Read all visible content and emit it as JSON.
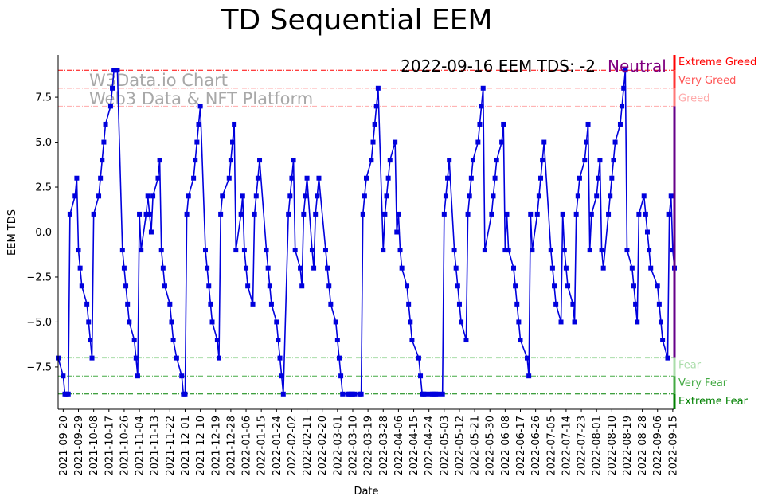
{
  "chart_data": {
    "type": "line",
    "title": "TD Sequential EEM",
    "annotation": "2022-09-16 EEM TDS: -2",
    "status": "Neutral",
    "watermark": [
      "W3Data.io Chart",
      "Web3 Data & NFT Platform"
    ],
    "xlabel": "Date",
    "ylabel": "EEM TDS",
    "ylim": [
      -9.85,
      9.85
    ],
    "yticks": [
      -7.5,
      -5.0,
      -2.5,
      0.0,
      2.5,
      5.0,
      7.5
    ],
    "ytick_labels": [
      "−7.5",
      "−5.0",
      "−2.5",
      "0.0",
      "2.5",
      "5.0",
      "7.5"
    ],
    "xticks": [
      "2021-09-20",
      "2021-09-29",
      "2021-10-08",
      "2021-10-17",
      "2021-10-26",
      "2021-11-04",
      "2021-11-13",
      "2021-11-22",
      "2021-12-01",
      "2021-12-10",
      "2021-12-19",
      "2021-12-28",
      "2022-01-06",
      "2022-01-15",
      "2022-01-24",
      "2022-02-02",
      "2022-02-11",
      "2022-02-20",
      "2022-03-01",
      "2022-03-10",
      "2022-03-19",
      "2022-03-28",
      "2022-04-06",
      "2022-04-15",
      "2022-04-24",
      "2022-05-03",
      "2022-05-12",
      "2022-05-21",
      "2022-05-30",
      "2022-06-08",
      "2022-06-17",
      "2022-06-26",
      "2022-07-05",
      "2022-07-14",
      "2022-07-23",
      "2022-08-01",
      "2022-08-10",
      "2022-08-19",
      "2022-08-28",
      "2022-09-06",
      "2022-09-15"
    ],
    "x_start": "2021-09-17",
    "x_end": "2022-09-16",
    "thresholds": [
      {
        "label": "Extreme Greed",
        "value": 9,
        "color": "#ff0000"
      },
      {
        "label": "Very Greed",
        "value": 8,
        "color": "#ff5555"
      },
      {
        "label": "Greed",
        "value": 7,
        "color": "#ffaaaa"
      },
      {
        "label": "Fear",
        "value": -7,
        "color": "#aaddaa"
      },
      {
        "label": "Very Fear",
        "value": -8,
        "color": "#44aa44"
      },
      {
        "label": "Extreme Fear",
        "value": -9,
        "color": "#008000"
      }
    ],
    "series": [
      {
        "name": "EEM TDS",
        "color": "#0000dd",
        "points": [
          [
            "2021-09-17",
            -7
          ],
          [
            "2021-09-20",
            -8
          ],
          [
            "2021-09-21",
            -9
          ],
          [
            "2021-09-22",
            -9
          ],
          [
            "2021-09-23",
            -9
          ],
          [
            "2021-09-24",
            1
          ],
          [
            "2021-09-27",
            2
          ],
          [
            "2021-09-28",
            3
          ],
          [
            "2021-09-29",
            -1
          ],
          [
            "2021-09-30",
            -2
          ],
          [
            "2021-10-01",
            -3
          ],
          [
            "2021-10-04",
            -4
          ],
          [
            "2021-10-05",
            -5
          ],
          [
            "2021-10-06",
            -6
          ],
          [
            "2021-10-07",
            -7
          ],
          [
            "2021-10-08",
            1
          ],
          [
            "2021-10-11",
            2
          ],
          [
            "2021-10-12",
            3
          ],
          [
            "2021-10-13",
            4
          ],
          [
            "2021-10-14",
            5
          ],
          [
            "2021-10-15",
            6
          ],
          [
            "2021-10-18",
            7
          ],
          [
            "2021-10-19",
            8
          ],
          [
            "2021-10-20",
            9
          ],
          [
            "2021-10-21",
            9
          ],
          [
            "2021-10-22",
            9
          ],
          [
            "2021-10-25",
            -1
          ],
          [
            "2021-10-26",
            -2
          ],
          [
            "2021-10-27",
            -3
          ],
          [
            "2021-10-28",
            -4
          ],
          [
            "2021-10-29",
            -5
          ],
          [
            "2021-11-01",
            -6
          ],
          [
            "2021-11-02",
            -7
          ],
          [
            "2021-11-03",
            -8
          ],
          [
            "2021-11-04",
            1
          ],
          [
            "2021-11-05",
            -1
          ],
          [
            "2021-11-08",
            1
          ],
          [
            "2021-11-09",
            2
          ],
          [
            "2021-11-10",
            1
          ],
          [
            "2021-11-11",
            0
          ],
          [
            "2021-11-12",
            2
          ],
          [
            "2021-11-15",
            3
          ],
          [
            "2021-11-16",
            4
          ],
          [
            "2021-11-17",
            -1
          ],
          [
            "2021-11-18",
            -2
          ],
          [
            "2021-11-19",
            -3
          ],
          [
            "2021-11-22",
            -4
          ],
          [
            "2021-11-23",
            -5
          ],
          [
            "2021-11-24",
            -6
          ],
          [
            "2021-11-26",
            -7
          ],
          [
            "2021-11-29",
            -8
          ],
          [
            "2021-11-30",
            -9
          ],
          [
            "2021-12-01",
            -9
          ],
          [
            "2021-12-02",
            1
          ],
          [
            "2021-12-03",
            2
          ],
          [
            "2021-12-06",
            3
          ],
          [
            "2021-12-07",
            4
          ],
          [
            "2021-12-08",
            5
          ],
          [
            "2021-12-09",
            6
          ],
          [
            "2021-12-10",
            7
          ],
          [
            "2021-12-13",
            -1
          ],
          [
            "2021-12-14",
            -2
          ],
          [
            "2021-12-15",
            -3
          ],
          [
            "2021-12-16",
            -4
          ],
          [
            "2021-12-17",
            -5
          ],
          [
            "2021-12-20",
            -6
          ],
          [
            "2021-12-21",
            -7
          ],
          [
            "2021-12-22",
            1
          ],
          [
            "2021-12-23",
            2
          ],
          [
            "2021-12-27",
            3
          ],
          [
            "2021-12-28",
            4
          ],
          [
            "2021-12-29",
            5
          ],
          [
            "2021-12-30",
            6
          ],
          [
            "2021-12-31",
            -1
          ],
          [
            "2022-01-03",
            1
          ],
          [
            "2022-01-04",
            2
          ],
          [
            "2022-01-05",
            -1
          ],
          [
            "2022-01-06",
            -2
          ],
          [
            "2022-01-07",
            -3
          ],
          [
            "2022-01-10",
            -4
          ],
          [
            "2022-01-11",
            1
          ],
          [
            "2022-01-12",
            2
          ],
          [
            "2022-01-13",
            3
          ],
          [
            "2022-01-14",
            4
          ],
          [
            "2022-01-18",
            -1
          ],
          [
            "2022-01-19",
            -2
          ],
          [
            "2022-01-20",
            -3
          ],
          [
            "2022-01-21",
            -4
          ],
          [
            "2022-01-24",
            -5
          ],
          [
            "2022-01-25",
            -6
          ],
          [
            "2022-01-26",
            -7
          ],
          [
            "2022-01-27",
            -8
          ],
          [
            "2022-01-28",
            -9
          ],
          [
            "2022-01-31",
            1
          ],
          [
            "2022-02-01",
            2
          ],
          [
            "2022-02-02",
            3
          ],
          [
            "2022-02-03",
            4
          ],
          [
            "2022-02-04",
            -1
          ],
          [
            "2022-02-07",
            -2
          ],
          [
            "2022-02-08",
            -3
          ],
          [
            "2022-02-09",
            1
          ],
          [
            "2022-02-10",
            2
          ],
          [
            "2022-02-11",
            3
          ],
          [
            "2022-02-14",
            -1
          ],
          [
            "2022-02-15",
            -2
          ],
          [
            "2022-02-16",
            1
          ],
          [
            "2022-02-17",
            2
          ],
          [
            "2022-02-18",
            3
          ],
          [
            "2022-02-22",
            -1
          ],
          [
            "2022-02-23",
            -2
          ],
          [
            "2022-02-24",
            -3
          ],
          [
            "2022-02-25",
            -4
          ],
          [
            "2022-02-28",
            -5
          ],
          [
            "2022-03-01",
            -6
          ],
          [
            "2022-03-02",
            -7
          ],
          [
            "2022-03-03",
            -8
          ],
          [
            "2022-03-04",
            -9
          ],
          [
            "2022-03-07",
            -9
          ],
          [
            "2022-03-08",
            -9
          ],
          [
            "2022-03-09",
            -9
          ],
          [
            "2022-03-10",
            -9
          ],
          [
            "2022-03-11",
            -9
          ],
          [
            "2022-03-14",
            -9
          ],
          [
            "2022-03-15",
            -9
          ],
          [
            "2022-03-16",
            1
          ],
          [
            "2022-03-17",
            2
          ],
          [
            "2022-03-18",
            3
          ],
          [
            "2022-03-21",
            4
          ],
          [
            "2022-03-22",
            5
          ],
          [
            "2022-03-23",
            6
          ],
          [
            "2022-03-24",
            7
          ],
          [
            "2022-03-25",
            8
          ],
          [
            "2022-03-28",
            -1
          ],
          [
            "2022-03-29",
            1
          ],
          [
            "2022-03-30",
            2
          ],
          [
            "2022-03-31",
            3
          ],
          [
            "2022-04-01",
            4
          ],
          [
            "2022-04-04",
            5
          ],
          [
            "2022-04-05",
            0
          ],
          [
            "2022-04-06",
            1
          ],
          [
            "2022-04-07",
            -1
          ],
          [
            "2022-04-08",
            -2
          ],
          [
            "2022-04-11",
            -3
          ],
          [
            "2022-04-12",
            -4
          ],
          [
            "2022-04-13",
            -5
          ],
          [
            "2022-04-14",
            -6
          ],
          [
            "2022-04-18",
            -7
          ],
          [
            "2022-04-19",
            -8
          ],
          [
            "2022-04-20",
            -9
          ],
          [
            "2022-04-21",
            -9
          ],
          [
            "2022-04-22",
            -9
          ],
          [
            "2022-04-25",
            -9
          ],
          [
            "2022-04-26",
            -9
          ],
          [
            "2022-04-27",
            -9
          ],
          [
            "2022-04-28",
            -9
          ],
          [
            "2022-04-29",
            -9
          ],
          [
            "2022-05-02",
            -9
          ],
          [
            "2022-05-03",
            1
          ],
          [
            "2022-05-04",
            2
          ],
          [
            "2022-05-05",
            3
          ],
          [
            "2022-05-06",
            4
          ],
          [
            "2022-05-09",
            -1
          ],
          [
            "2022-05-10",
            -2
          ],
          [
            "2022-05-11",
            -3
          ],
          [
            "2022-05-12",
            -4
          ],
          [
            "2022-05-13",
            -5
          ],
          [
            "2022-05-16",
            -6
          ],
          [
            "2022-05-17",
            1
          ],
          [
            "2022-05-18",
            2
          ],
          [
            "2022-05-19",
            3
          ],
          [
            "2022-05-20",
            4
          ],
          [
            "2022-05-23",
            5
          ],
          [
            "2022-05-24",
            6
          ],
          [
            "2022-05-25",
            7
          ],
          [
            "2022-05-26",
            8
          ],
          [
            "2022-05-27",
            -1
          ],
          [
            "2022-05-31",
            1
          ],
          [
            "2022-06-01",
            2
          ],
          [
            "2022-06-02",
            3
          ],
          [
            "2022-06-03",
            4
          ],
          [
            "2022-06-06",
            5
          ],
          [
            "2022-06-07",
            6
          ],
          [
            "2022-06-08",
            -1
          ],
          [
            "2022-06-09",
            1
          ],
          [
            "2022-06-10",
            -1
          ],
          [
            "2022-06-13",
            -2
          ],
          [
            "2022-06-14",
            -3
          ],
          [
            "2022-06-15",
            -4
          ],
          [
            "2022-06-16",
            -5
          ],
          [
            "2022-06-17",
            -6
          ],
          [
            "2022-06-21",
            -7
          ],
          [
            "2022-06-22",
            -8
          ],
          [
            "2022-06-23",
            1
          ],
          [
            "2022-06-24",
            -1
          ],
          [
            "2022-06-27",
            1
          ],
          [
            "2022-06-28",
            2
          ],
          [
            "2022-06-29",
            3
          ],
          [
            "2022-06-30",
            4
          ],
          [
            "2022-07-01",
            5
          ],
          [
            "2022-07-05",
            -1
          ],
          [
            "2022-07-06",
            -2
          ],
          [
            "2022-07-07",
            -3
          ],
          [
            "2022-07-08",
            -4
          ],
          [
            "2022-07-11",
            -5
          ],
          [
            "2022-07-12",
            1
          ],
          [
            "2022-07-13",
            -1
          ],
          [
            "2022-07-14",
            -2
          ],
          [
            "2022-07-15",
            -3
          ],
          [
            "2022-07-18",
            -4
          ],
          [
            "2022-07-19",
            -5
          ],
          [
            "2022-07-20",
            1
          ],
          [
            "2022-07-21",
            2
          ],
          [
            "2022-07-22",
            3
          ],
          [
            "2022-07-25",
            4
          ],
          [
            "2022-07-26",
            5
          ],
          [
            "2022-07-27",
            6
          ],
          [
            "2022-07-28",
            -1
          ],
          [
            "2022-07-29",
            1
          ],
          [
            "2022-08-01",
            2
          ],
          [
            "2022-08-02",
            3
          ],
          [
            "2022-08-03",
            4
          ],
          [
            "2022-08-04",
            -1
          ],
          [
            "2022-08-05",
            -2
          ],
          [
            "2022-08-08",
            1
          ],
          [
            "2022-08-09",
            2
          ],
          [
            "2022-08-10",
            3
          ],
          [
            "2022-08-11",
            4
          ],
          [
            "2022-08-12",
            5
          ],
          [
            "2022-08-15",
            6
          ],
          [
            "2022-08-16",
            7
          ],
          [
            "2022-08-17",
            8
          ],
          [
            "2022-08-18",
            9
          ],
          [
            "2022-08-19",
            -1
          ],
          [
            "2022-08-22",
            -2
          ],
          [
            "2022-08-23",
            -3
          ],
          [
            "2022-08-24",
            -4
          ],
          [
            "2022-08-25",
            -5
          ],
          [
            "2022-08-26",
            1
          ],
          [
            "2022-08-29",
            2
          ],
          [
            "2022-08-30",
            1
          ],
          [
            "2022-08-31",
            0
          ],
          [
            "2022-09-01",
            -1
          ],
          [
            "2022-09-02",
            -2
          ],
          [
            "2022-09-06",
            -3
          ],
          [
            "2022-09-07",
            -4
          ],
          [
            "2022-09-08",
            -5
          ],
          [
            "2022-09-09",
            -6
          ],
          [
            "2022-09-12",
            -7
          ],
          [
            "2022-09-13",
            1
          ],
          [
            "2022-09-14",
            2
          ],
          [
            "2022-09-15",
            -1
          ],
          [
            "2022-09-16",
            -2
          ]
        ]
      }
    ]
  }
}
